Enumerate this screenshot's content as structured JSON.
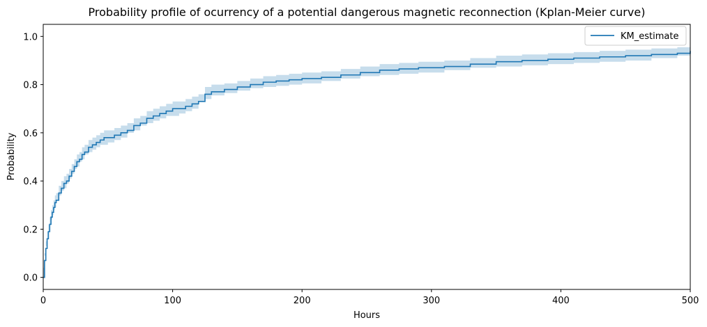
{
  "chart_data": {
    "type": "line",
    "title": "Probability profile of ocurrency of a potential dangerous magnetic reconnection (Kplan-Meier curve)",
    "xlabel": "Hours",
    "ylabel": "Probability",
    "xlim": [
      0,
      500
    ],
    "ylim": [
      -0.05,
      1.05
    ],
    "x_ticks": [
      0,
      100,
      200,
      300,
      400,
      500
    ],
    "y_ticks": [
      0.0,
      0.2,
      0.4,
      0.6,
      0.8,
      1.0
    ],
    "x_tick_labels": [
      "0",
      "100",
      "200",
      "300",
      "400",
      "500"
    ],
    "y_tick_labels": [
      "0.0",
      "0.2",
      "0.4",
      "0.6",
      "0.8",
      "1.0"
    ],
    "grid": false,
    "legend": {
      "position": "top-right",
      "entries": [
        "KM_estimate"
      ]
    },
    "colors": {
      "line": "#1f77b4",
      "band": "#1f77b4"
    },
    "series": [
      {
        "name": "KM_estimate",
        "step": true,
        "x": [
          0,
          1,
          2,
          3,
          4,
          5,
          6,
          7,
          8,
          9,
          10,
          12,
          14,
          16,
          18,
          20,
          22,
          24,
          26,
          28,
          30,
          32,
          35,
          38,
          41,
          44,
          47,
          50,
          55,
          60,
          65,
          70,
          75,
          80,
          85,
          90,
          95,
          100,
          105,
          110,
          115,
          120,
          125,
          130,
          140,
          150,
          160,
          170,
          180,
          190,
          200,
          215,
          230,
          245,
          260,
          275,
          290,
          310,
          330,
          350,
          370,
          390,
          410,
          430,
          450,
          470,
          490,
          500
        ],
        "y": [
          0.0,
          0.07,
          0.12,
          0.16,
          0.19,
          0.22,
          0.25,
          0.27,
          0.29,
          0.31,
          0.32,
          0.35,
          0.37,
          0.39,
          0.4,
          0.42,
          0.44,
          0.46,
          0.48,
          0.49,
          0.51,
          0.52,
          0.54,
          0.55,
          0.56,
          0.57,
          0.58,
          0.58,
          0.59,
          0.6,
          0.61,
          0.63,
          0.64,
          0.66,
          0.67,
          0.68,
          0.69,
          0.7,
          0.7,
          0.71,
          0.72,
          0.73,
          0.76,
          0.77,
          0.78,
          0.79,
          0.8,
          0.81,
          0.815,
          0.82,
          0.825,
          0.83,
          0.84,
          0.85,
          0.86,
          0.865,
          0.87,
          0.875,
          0.885,
          0.895,
          0.9,
          0.905,
          0.91,
          0.915,
          0.92,
          0.925,
          0.93,
          0.94
        ],
        "ci_lower": [
          0.0,
          0.04,
          0.09,
          0.13,
          0.16,
          0.19,
          0.22,
          0.24,
          0.26,
          0.28,
          0.29,
          0.32,
          0.34,
          0.36,
          0.37,
          0.39,
          0.41,
          0.43,
          0.45,
          0.46,
          0.48,
          0.49,
          0.51,
          0.52,
          0.53,
          0.54,
          0.55,
          0.55,
          0.56,
          0.57,
          0.58,
          0.6,
          0.61,
          0.63,
          0.64,
          0.65,
          0.66,
          0.67,
          0.67,
          0.68,
          0.69,
          0.7,
          0.73,
          0.74,
          0.755,
          0.765,
          0.775,
          0.785,
          0.79,
          0.795,
          0.8,
          0.805,
          0.815,
          0.825,
          0.835,
          0.84,
          0.845,
          0.85,
          0.86,
          0.87,
          0.875,
          0.88,
          0.885,
          0.89,
          0.895,
          0.9,
          0.91,
          0.92
        ],
        "ci_upper": [
          0.0,
          0.1,
          0.15,
          0.19,
          0.22,
          0.25,
          0.28,
          0.3,
          0.32,
          0.34,
          0.35,
          0.38,
          0.4,
          0.42,
          0.43,
          0.45,
          0.47,
          0.49,
          0.51,
          0.52,
          0.54,
          0.55,
          0.57,
          0.58,
          0.59,
          0.6,
          0.61,
          0.61,
          0.62,
          0.63,
          0.64,
          0.66,
          0.67,
          0.69,
          0.7,
          0.71,
          0.72,
          0.73,
          0.73,
          0.74,
          0.75,
          0.76,
          0.79,
          0.8,
          0.805,
          0.815,
          0.825,
          0.835,
          0.84,
          0.845,
          0.85,
          0.855,
          0.865,
          0.875,
          0.885,
          0.89,
          0.895,
          0.9,
          0.91,
          0.92,
          0.925,
          0.93,
          0.935,
          0.94,
          0.945,
          0.95,
          0.955,
          0.96
        ]
      }
    ]
  }
}
